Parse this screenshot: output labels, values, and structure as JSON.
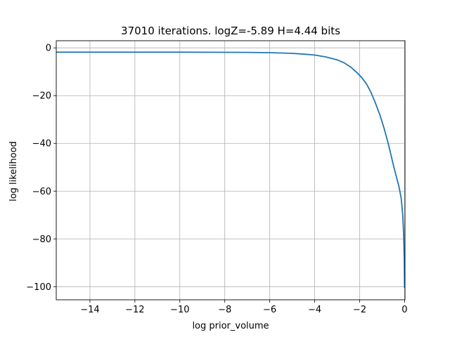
{
  "chart_data": {
    "type": "line",
    "title": "37010 iterations. logZ=-5.89 H=4.44 bits",
    "xlabel": "log prior_volume",
    "ylabel": "log likelihood",
    "xlim": [
      -15.5,
      0.02
    ],
    "ylim": [
      -105.5,
      3
    ],
    "grid": true,
    "xticks": [
      -14,
      -12,
      -10,
      -8,
      -6,
      -4,
      -2,
      0
    ],
    "yticks": [
      0,
      -20,
      -40,
      -60,
      -80,
      -100
    ],
    "line_color": "#1f77b4",
    "series": [
      {
        "x": [
          -15.5,
          -14,
          -12,
          -10,
          -8,
          -7,
          -6,
          -5,
          -4.5,
          -4,
          -3.5,
          -3,
          -2.7,
          -2.4,
          -2.1,
          -1.9,
          -1.7,
          -1.5,
          -1.3,
          -1.1,
          -0.9,
          -0.7,
          -0.5,
          -0.35,
          -0.25,
          -0.15,
          -0.08,
          -0.04,
          -0.015,
          0
        ],
        "y": [
          -1.8,
          -1.8,
          -1.8,
          -1.8,
          -1.85,
          -1.9,
          -2.0,
          -2.3,
          -2.6,
          -3.0,
          -3.8,
          -5.0,
          -6.2,
          -8.0,
          -10.5,
          -12.5,
          -15.0,
          -18.5,
          -23.0,
          -28.0,
          -34.0,
          -41.0,
          -49.0,
          -54.5,
          -58.0,
          -63.0,
          -70.0,
          -78.0,
          -88.0,
          -100.5
        ]
      }
    ]
  }
}
